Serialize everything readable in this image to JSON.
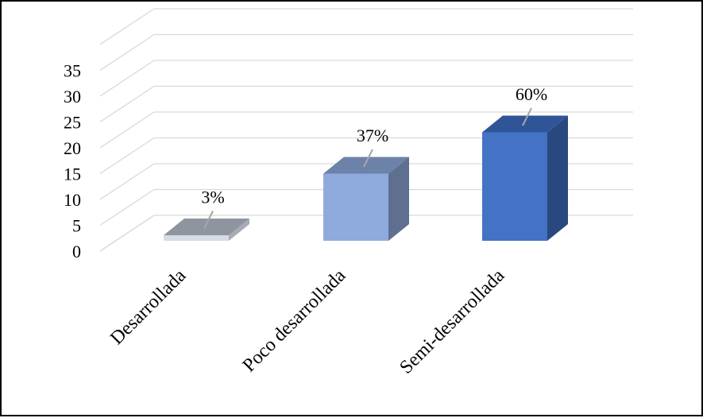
{
  "chart_data": {
    "type": "bar",
    "title": "",
    "xlabel": "",
    "ylabel": "",
    "categories": [
      "Desarrollada",
      "Poco desarrollada",
      "Semi-desarrollada"
    ],
    "values": [
      1,
      13,
      21
    ],
    "data_labels": [
      "3%",
      "37%",
      "60%"
    ],
    "yticks": [
      "0",
      "5",
      "10",
      "15",
      "20",
      "25",
      "30",
      "35"
    ],
    "ylim": [
      0,
      35
    ],
    "grid": true,
    "legend": "none",
    "style": "3d-column",
    "colors": [
      {
        "front": "#d6dce5",
        "side": "#a6acb4",
        "top": "#8e959e"
      },
      {
        "front": "#8faadc",
        "side": "#5f6f8f",
        "top": "#6d82a8"
      },
      {
        "front": "#4472c4",
        "side": "#2a4880",
        "top": "#2f5597"
      }
    ]
  }
}
